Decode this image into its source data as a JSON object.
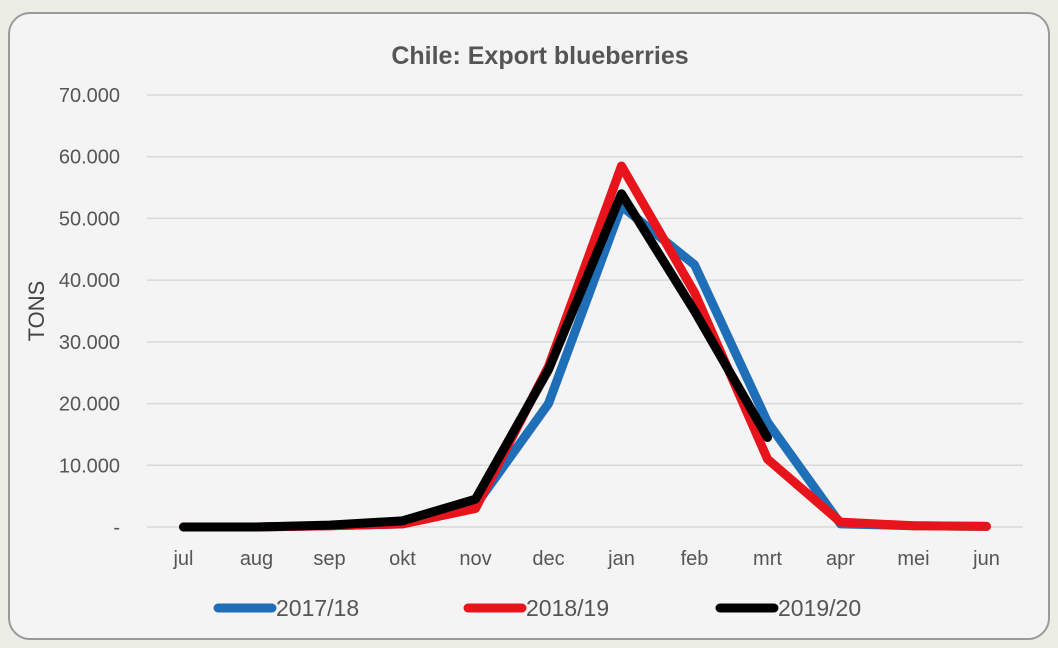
{
  "chart_data": {
    "type": "line",
    "title": "Chile: Export blueberries",
    "xlabel": "",
    "ylabel": "TONS",
    "categories": [
      "jul",
      "aug",
      "sep",
      "okt",
      "nov",
      "dec",
      "jan",
      "feb",
      "mrt",
      "apr",
      "mei",
      "jun"
    ],
    "yticks": [
      "-",
      "10.000",
      "20.000",
      "30.000",
      "40.000",
      "50.000",
      "60.000",
      "70.000"
    ],
    "ylim": [
      0,
      70000
    ],
    "grid": true,
    "legend_position": "bottom",
    "series": [
      {
        "name": "2017/18",
        "color": "#1f6fb8",
        "values": [
          0,
          0,
          200,
          500,
          3500,
          20000,
          52000,
          42500,
          17000,
          500,
          200,
          100
        ]
      },
      {
        "name": "2018/19",
        "color": "#e8141b",
        "values": [
          0,
          0,
          200,
          500,
          3000,
          26000,
          58500,
          38000,
          11000,
          800,
          200,
          100
        ]
      },
      {
        "name": "2019/20",
        "color": "#000000",
        "values": [
          0,
          0,
          300,
          1000,
          4500,
          25500,
          54000,
          35000,
          14500,
          null,
          null,
          null
        ]
      }
    ]
  }
}
